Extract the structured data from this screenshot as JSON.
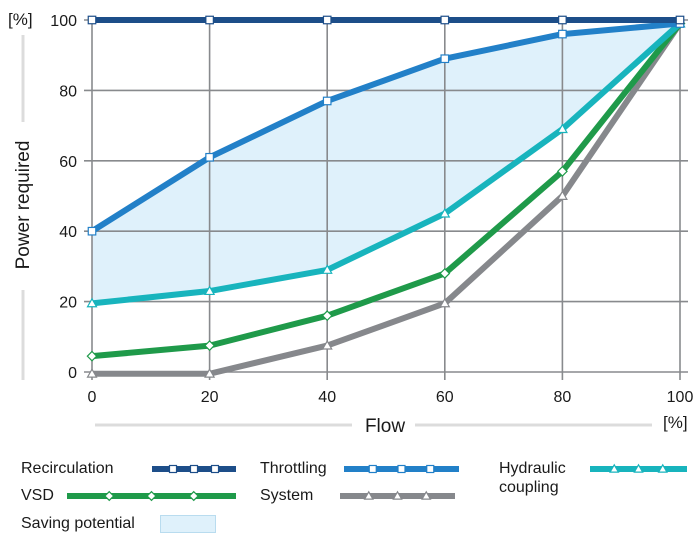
{
  "chart_data": {
    "type": "line",
    "title": "",
    "xlabel": "Flow",
    "ylabel": "Power required",
    "x_unit": "[%]",
    "y_unit": "[%]",
    "xlim": [
      0,
      100
    ],
    "ylim": [
      0,
      100
    ],
    "x_ticks": [
      "0",
      "20",
      "40",
      "60",
      "80",
      "100"
    ],
    "y_ticks": [
      "0",
      "20",
      "40",
      "60",
      "80",
      "100"
    ],
    "grid": true,
    "x": [
      0,
      20,
      40,
      60,
      80,
      100
    ],
    "series": [
      {
        "name": "Recirculation",
        "color": "#1d4e89",
        "marker": "square",
        "values": [
          100,
          100,
          100,
          100,
          100,
          100
        ]
      },
      {
        "name": "Throttling",
        "color": "#2280c8",
        "marker": "square",
        "values": [
          40,
          61,
          77,
          89,
          96,
          99
        ]
      },
      {
        "name": "Hydraulic\ncoupling",
        "color": "#18b4bd",
        "marker": "triangle",
        "values": [
          19.5,
          23,
          29,
          45,
          69,
          99
        ]
      },
      {
        "name": "VSD",
        "color": "#1f9a4a",
        "marker": "diamond",
        "values": [
          4.5,
          7.5,
          16,
          28,
          57,
          99
        ]
      },
      {
        "name": "System",
        "color": "#86888c",
        "marker": "triangle",
        "values": [
          -0.5,
          -0.5,
          7.5,
          19.5,
          50,
          99
        ]
      }
    ],
    "shaded_region": {
      "name": "Saving potential",
      "color": "#dff1fb",
      "upper_series": "Throttling",
      "lower_series": "Hydraulic\ncoupling"
    },
    "legend_placement": "bottom"
  }
}
